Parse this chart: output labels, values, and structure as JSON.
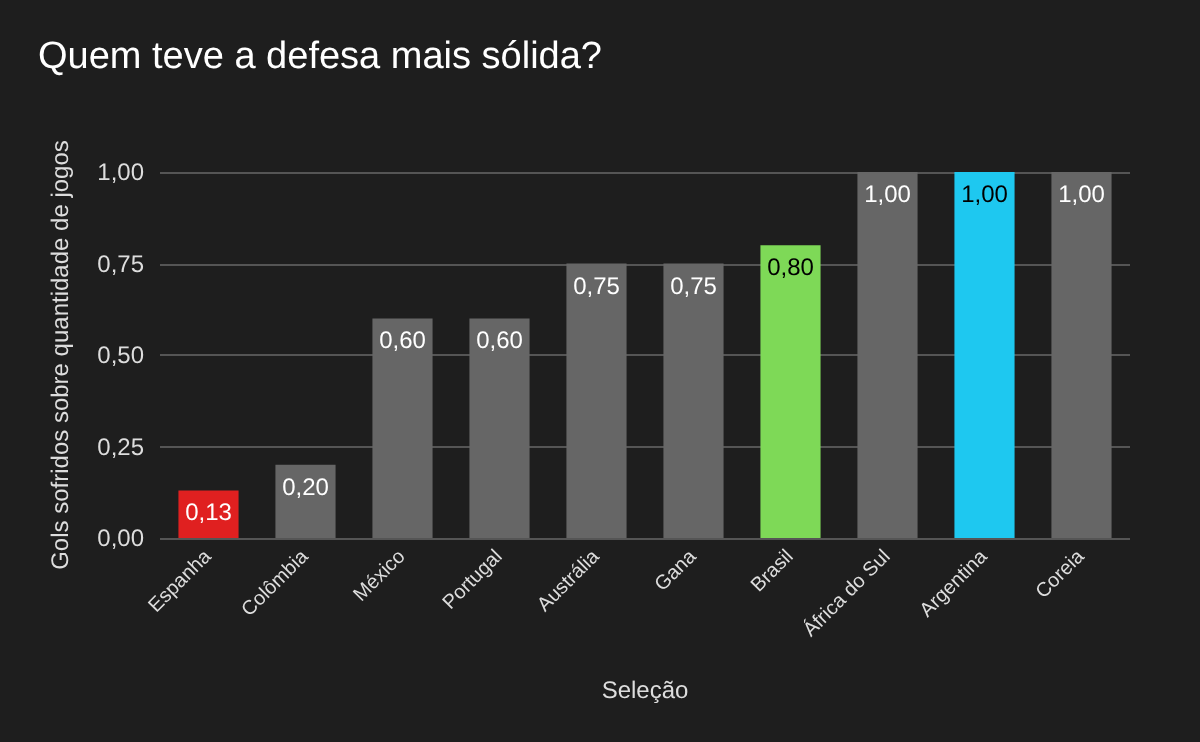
{
  "chart_data": {
    "type": "bar",
    "title": "Quem teve a defesa mais sólida?",
    "xlabel": "Seleção",
    "ylabel": "Gols sofridos sobre quantidade de jogos",
    "categories": [
      "Espanha",
      "Colômbia",
      "México",
      "Portugal",
      "Austrália",
      "Gana",
      "Brasil",
      "África do Sul",
      "Argentina",
      "Coreia"
    ],
    "values": [
      0.13,
      0.2,
      0.6,
      0.6,
      0.75,
      0.75,
      0.8,
      1,
      1,
      1
    ],
    "value_labels": [
      "0,13",
      "0,20",
      "0,60",
      "0,60",
      "0,75",
      "0,75",
      "0,80",
      "1,00",
      "1,00",
      "1,00"
    ],
    "colors": [
      "#e02020",
      "#666666",
      "#666666",
      "#666666",
      "#666666",
      "#666666",
      "#7ed957",
      "#666666",
      "#1ec8f0",
      "#666666"
    ],
    "ylim": [
      0,
      1
    ],
    "yticks": [
      {
        "value": 0,
        "label": "0,00"
      },
      {
        "value": 0.25,
        "label": "0,25"
      },
      {
        "value": 0.5,
        "label": "0,50"
      },
      {
        "value": 0.75,
        "label": "0,75"
      },
      {
        "value": 1,
        "label": "1,00"
      }
    ],
    "grid": "y"
  }
}
